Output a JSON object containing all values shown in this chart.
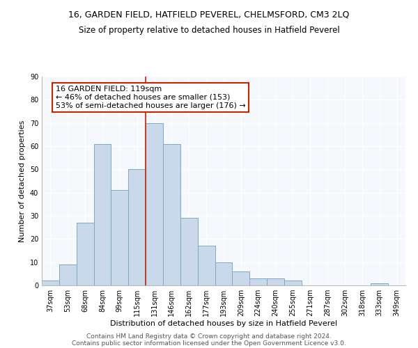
{
  "title1": "16, GARDEN FIELD, HATFIELD PEVEREL, CHELMSFORD, CM3 2LQ",
  "title2": "Size of property relative to detached houses in Hatfield Peverel",
  "xlabel": "Distribution of detached houses by size in Hatfield Peverel",
  "ylabel": "Number of detached properties",
  "categories": [
    "37sqm",
    "53sqm",
    "68sqm",
    "84sqm",
    "99sqm",
    "115sqm",
    "131sqm",
    "146sqm",
    "162sqm",
    "177sqm",
    "193sqm",
    "209sqm",
    "224sqm",
    "240sqm",
    "255sqm",
    "271sqm",
    "287sqm",
    "302sqm",
    "318sqm",
    "333sqm",
    "349sqm"
  ],
  "values": [
    2,
    9,
    27,
    61,
    41,
    50,
    70,
    61,
    29,
    17,
    10,
    6,
    3,
    3,
    2,
    0,
    0,
    0,
    0,
    1,
    0
  ],
  "bar_color": "#c9d9ea",
  "bar_edge_color": "#7aaac8",
  "vline_x_index": 5.5,
  "vline_color": "#cc2200",
  "annotation_text": "16 GARDEN FIELD: 119sqm\n← 46% of detached houses are smaller (153)\n53% of semi-detached houses are larger (176) →",
  "annotation_box_color": "#ffffff",
  "annotation_box_edge_color": "#cc2200",
  "ylim": [
    0,
    90
  ],
  "yticks": [
    0,
    10,
    20,
    30,
    40,
    50,
    60,
    70,
    80,
    90
  ],
  "footer1": "Contains HM Land Registry data © Crown copyright and database right 2024.",
  "footer2": "Contains public sector information licensed under the Open Government Licence v3.0.",
  "plot_bg_color": "#f5f8fc",
  "title_fontsize": 9,
  "subtitle_fontsize": 8.5,
  "axis_label_fontsize": 8,
  "tick_fontsize": 7,
  "annotation_fontsize": 8,
  "footer_fontsize": 6.5
}
